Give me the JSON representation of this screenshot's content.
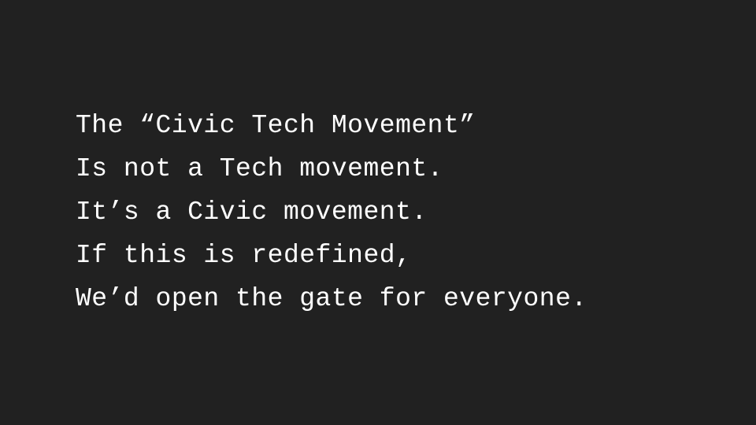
{
  "slide": {
    "background_color": "#212121",
    "text_color": "#ffffff",
    "lines": [
      "The “Civic Tech Movement”",
      "Is not a Tech movement.",
      "It’s a Civic movement.",
      "If this is redefined,",
      "We’d open the gate for everyone."
    ]
  }
}
